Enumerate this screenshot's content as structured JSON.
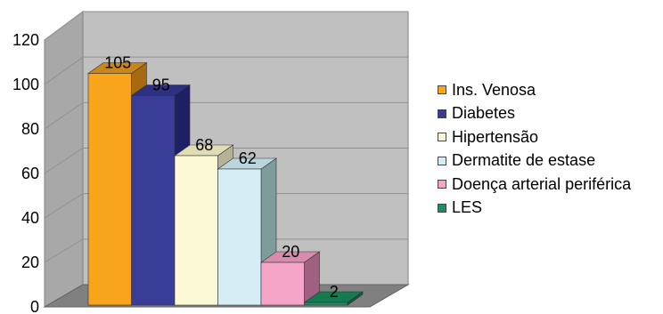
{
  "chart_data": {
    "type": "bar",
    "title": "",
    "xlabel": "",
    "ylabel": "",
    "ylim": [
      0,
      120
    ],
    "yticks": [
      0,
      20,
      40,
      60,
      80,
      100,
      120
    ],
    "grid": true,
    "three_d": true,
    "legend_position": "right",
    "categories": [
      "Ins. Venosa",
      "Diabetes",
      "Hipertensão",
      "Dermatite de estase",
      "Doença arterial periférica",
      "LES"
    ],
    "values": [
      105,
      95,
      68,
      62,
      20,
      2
    ],
    "colors": [
      "#F8A51B",
      "#3A3D98",
      "#FCF9D6",
      "#D5EEF5",
      "#F5A6C8",
      "#1F8F63"
    ],
    "side_colors": [
      "#A86A10",
      "#1E2065",
      "#B5B298",
      "#7E9C9C",
      "#A06080",
      "#0E5A3A"
    ],
    "top_colors": [
      "#C9861A",
      "#2E3080",
      "#E0DDB5",
      "#B8D6DC",
      "#D98BAE",
      "#157A50"
    ]
  }
}
